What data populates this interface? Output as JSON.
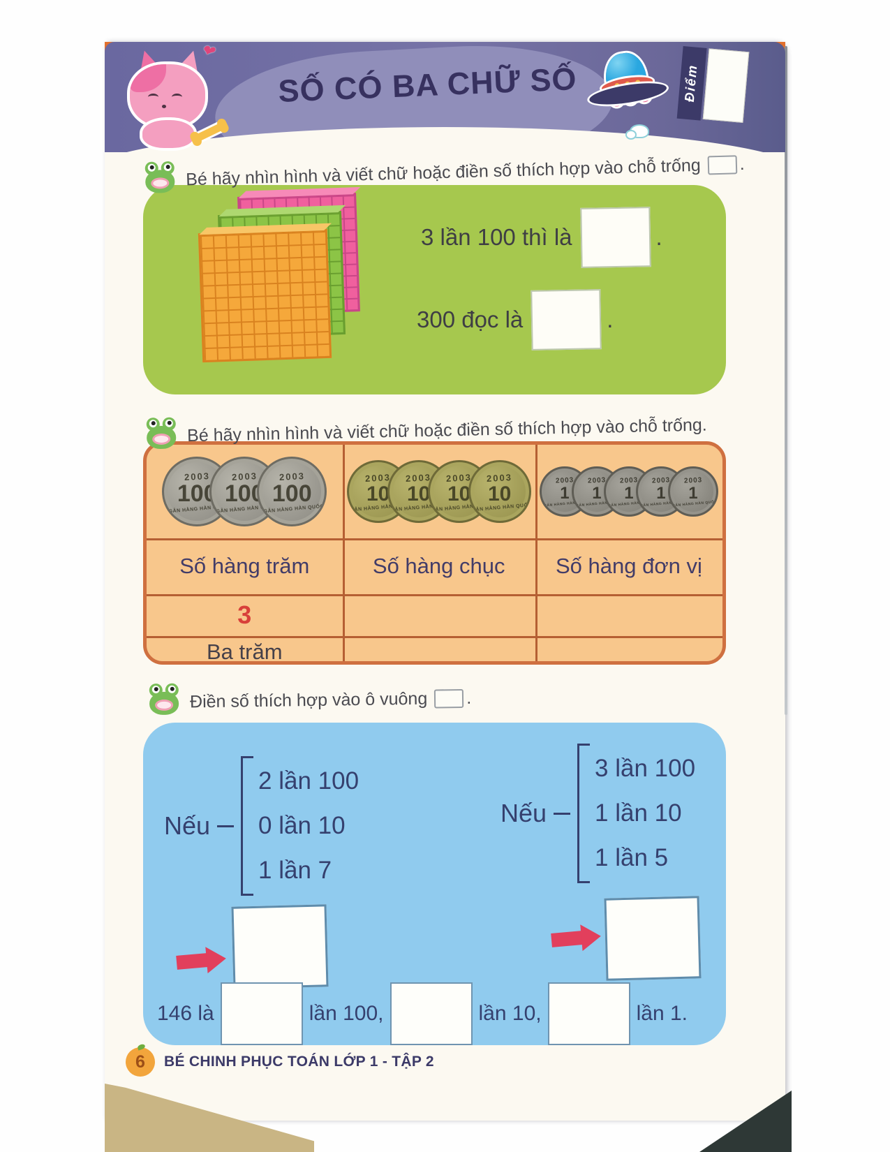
{
  "colors": {
    "page-bg": "#fcf9f1",
    "banner-light": "#908eba",
    "title-navy": "#37315f",
    "green-panel": "#a6c84e",
    "orange-panel": "#f8c78c",
    "orange-border": "#cf7040",
    "blue-panel": "#90cbee",
    "text-dark": "#4a4a50",
    "navy-text": "#35406e",
    "red-accent": "#d8403a",
    "arrow-red": "#e23f5c"
  },
  "header": {
    "title": "SỐ CÓ BA CHỮ SỐ",
    "score_label": "Điểm"
  },
  "exercise1": {
    "instruction": "Bé hãy nhìn hình và viết chữ hoặc điền số thích hợp vào chỗ trống",
    "after_blank": ".",
    "prompts": [
      {
        "text": "3 lần 100 thì là",
        "after": "."
      },
      {
        "text": "300 đọc là",
        "after": "."
      }
    ]
  },
  "exercise2": {
    "instruction": "Bé hãy nhìn hình và viết chữ hoặc điền số thích hợp vào chỗ trống.",
    "coins": {
      "year": "2003",
      "bank_text": "NGÂN HÀNG HÀN QUỐC",
      "groups": [
        {
          "value": "100",
          "count": 3
        },
        {
          "value": "10",
          "count": 4
        },
        {
          "value": "1",
          "count": 5
        }
      ]
    },
    "table": {
      "headers": [
        "Số hàng trăm",
        "Số hàng chục",
        "Số hàng đơn vị"
      ],
      "digit_row": [
        "3",
        "",
        ""
      ],
      "word_row": [
        "Ba trăm",
        "",
        ""
      ]
    }
  },
  "exercise3": {
    "instruction": "Điền số thích hợp vào ô vuông",
    "after_blank": ".",
    "cases": [
      {
        "label": "Nếu",
        "lines": [
          "2 lần 100",
          "0 lần 10",
          "1 lần 7"
        ]
      },
      {
        "label": "Nếu",
        "lines": [
          "3 lần 100",
          "1 lần 10",
          "1 lần 5"
        ]
      }
    ],
    "sum_line": {
      "start": "146 là",
      "after_box1": "lần 100,",
      "after_box2": "lần 10,",
      "after_box3": "lần 1."
    }
  },
  "footer": {
    "page_number": "6",
    "book_title": "BÉ CHINH PHỤC TOÁN LỚP 1 - TẬP 2"
  }
}
